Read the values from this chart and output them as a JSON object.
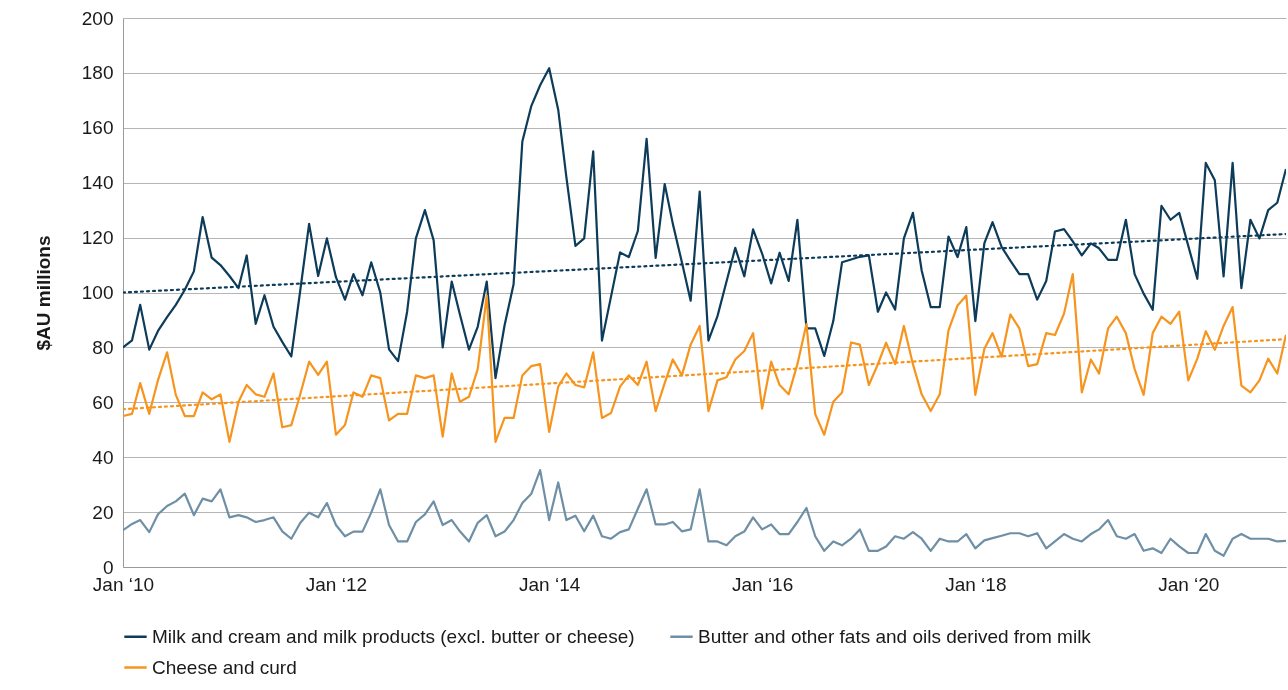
{
  "chart_data": {
    "type": "line",
    "ylabel": "$AU millions",
    "xlim": [
      "2010-01",
      "2020-12"
    ],
    "xticks": [
      {
        "value": "2010-01",
        "label": "Jan ‘10"
      },
      {
        "value": "2012-01",
        "label": "Jan ‘12"
      },
      {
        "value": "2014-01",
        "label": "Jan ‘14"
      },
      {
        "value": "2016-01",
        "label": "Jan ‘16"
      },
      {
        "value": "2018-01",
        "label": "Jan ‘18"
      },
      {
        "value": "2020-01",
        "label": "Jan ‘20"
      }
    ],
    "ylim": [
      0,
      200
    ],
    "yticks": [
      0,
      20,
      40,
      60,
      80,
      100,
      120,
      140,
      160,
      180,
      200
    ],
    "grid": "y",
    "legend": "bottom",
    "x": [
      "2010-01",
      "2010-02",
      "2010-03",
      "2010-04",
      "2010-05",
      "2010-06",
      "2010-07",
      "2010-08",
      "2010-09",
      "2010-10",
      "2010-11",
      "2010-12",
      "2011-01",
      "2011-02",
      "2011-03",
      "2011-04",
      "2011-05",
      "2011-06",
      "2011-07",
      "2011-08",
      "2011-09",
      "2011-10",
      "2011-11",
      "2011-12",
      "2012-01",
      "2012-02",
      "2012-03",
      "2012-04",
      "2012-05",
      "2012-06",
      "2012-07",
      "2012-08",
      "2012-09",
      "2012-10",
      "2012-11",
      "2012-12",
      "2013-01",
      "2013-02",
      "2013-03",
      "2013-04",
      "2013-05",
      "2013-06",
      "2013-07",
      "2013-08",
      "2013-09",
      "2013-10",
      "2013-11",
      "2013-12",
      "2014-01",
      "2014-02",
      "2014-03",
      "2014-04",
      "2014-05",
      "2014-06",
      "2014-07",
      "2014-08",
      "2014-09",
      "2014-10",
      "2014-11",
      "2014-12",
      "2015-01",
      "2015-02",
      "2015-03",
      "2015-04",
      "2015-05",
      "2015-06",
      "2015-07",
      "2015-08",
      "2015-09",
      "2015-10",
      "2015-11",
      "2015-12",
      "2016-01",
      "2016-02",
      "2016-03",
      "2016-04",
      "2016-05",
      "2016-06",
      "2016-07",
      "2016-08",
      "2016-09",
      "2016-10",
      "2016-11",
      "2016-12",
      "2017-01",
      "2017-02",
      "2017-03",
      "2017-04",
      "2017-05",
      "2017-06",
      "2017-07",
      "2017-08",
      "2017-09",
      "2017-10",
      "2017-11",
      "2017-12",
      "2018-01",
      "2018-02",
      "2018-03",
      "2018-04",
      "2018-05",
      "2018-06",
      "2018-07",
      "2018-08",
      "2018-09",
      "2018-10",
      "2018-11",
      "2018-12",
      "2019-01",
      "2019-02",
      "2019-03",
      "2019-04",
      "2019-05",
      "2019-06",
      "2019-07",
      "2019-08",
      "2019-09",
      "2019-10",
      "2019-11",
      "2019-12",
      "2020-01",
      "2020-02",
      "2020-03",
      "2020-04",
      "2020-05",
      "2020-06",
      "2020-07",
      "2020-08",
      "2020-09",
      "2020-10",
      "2020-11",
      "2020-12"
    ],
    "series": [
      {
        "name": "Milk and cream and milk products (excl. butter or cheese)",
        "color": "#0d3b5a",
        "values": [
          80,
          82.6,
          95.5,
          79.2,
          86,
          91,
          95.5,
          101,
          107.7,
          127.5,
          112.7,
          110,
          106,
          101.6,
          113.5,
          88.6,
          99,
          87.5,
          82,
          76.7,
          101,
          125,
          106,
          119.7,
          105.6,
          97.4,
          106.7,
          99,
          111,
          100,
          79.3,
          75,
          93,
          119.7,
          130,
          119,
          80,
          104,
          92,
          79.2,
          87.5,
          104,
          68.8,
          88,
          103,
          155,
          168,
          175.5,
          181.7,
          166.6,
          142,
          117,
          119.7,
          151.4,
          82.5,
          98.5,
          114.6,
          112.9,
          122.4,
          156,
          112.6,
          139.5,
          125,
          111,
          97,
          136.8,
          82.5,
          91.4,
          104,
          116.3,
          105.9,
          123,
          114.2,
          103.3,
          114.5,
          104.2,
          126.5,
          86.9,
          86.9,
          76.9,
          89.6,
          111,
          112,
          113,
          113.5,
          93,
          100,
          93.8,
          119.7,
          129,
          108,
          94.7,
          94.7,
          120.4,
          112.9,
          123.8,
          89.6,
          118,
          125.6,
          116.6,
          111.6,
          106.7,
          106.7,
          97.4,
          104.2,
          122.2,
          123.1,
          118.6,
          113.5,
          117.9,
          116.1,
          111.9,
          111.9,
          126.5,
          106.7,
          99.6,
          93.7,
          131.6,
          126.5,
          129,
          117,
          105,
          147.2,
          140.9,
          105.9,
          147.2,
          101.6,
          126.5,
          119.7,
          130,
          132.7,
          145
        ]
      },
      {
        "name": "Butter and other fats and oils derived from milk",
        "color": "#6e8fa5",
        "values": [
          13.4,
          15.7,
          17.1,
          12.7,
          19.2,
          22.2,
          23.9,
          26.7,
          18.9,
          24.9,
          23.9,
          28.3,
          18.1,
          18.9,
          18.1,
          16.4,
          17.1,
          18.1,
          13,
          10.3,
          16.1,
          19.8,
          18.1,
          23.3,
          15.3,
          11.2,
          12.9,
          12.9,
          19.8,
          28.3,
          15.3,
          9.3,
          9.3,
          16.4,
          19.2,
          23.9,
          15.3,
          17.1,
          13,
          9.3,
          16.1,
          18.9,
          11.2,
          12.9,
          17.1,
          23.3,
          26.7,
          35.3,
          17.1,
          30.8,
          17.1,
          18.7,
          13,
          18.7,
          11.2,
          10.3,
          12.7,
          13.7,
          21.2,
          28.3,
          15.5,
          15.5,
          16.4,
          13,
          13.7,
          28.3,
          9.3,
          9.3,
          7.9,
          11.2,
          12.9,
          18.1,
          13.7,
          15.5,
          12,
          12,
          16.4,
          21.5,
          11.2,
          5.9,
          9.3,
          7.9,
          10.3,
          13.7,
          5.9,
          5.9,
          7.5,
          11.2,
          10.3,
          12.7,
          10.3,
          5.9,
          10.3,
          9.3,
          9.3,
          12,
          6.8,
          9.7,
          10.5,
          11.4,
          12.3,
          12.3,
          11.2,
          12.3,
          6.8,
          9.3,
          12,
          10.3,
          9.3,
          12,
          13.7,
          17.1,
          11.2,
          10.3,
          12,
          5.9,
          6.8,
          5.1,
          10.3,
          7.5,
          5.1,
          5.1,
          12,
          5.9,
          4.1,
          10.3,
          12,
          10.3,
          10.3,
          10.3,
          9.3,
          9.5
        ]
      },
      {
        "name": "Cheese and curd",
        "color": "#f7941d",
        "values": [
          55,
          55.8,
          67,
          55.8,
          68.1,
          78.2,
          62.7,
          55,
          55,
          63.6,
          61.1,
          62.9,
          45.6,
          60.2,
          66.3,
          62.9,
          62,
          70.5,
          50.9,
          51.7,
          63,
          74.8,
          70,
          74.8,
          48.2,
          51.7,
          63.6,
          62,
          69.8,
          68.8,
          53.4,
          55.8,
          55.8,
          69.8,
          68.8,
          69.8,
          47.5,
          70.5,
          60.2,
          62,
          72.1,
          98.9,
          45.6,
          54.3,
          54.3,
          69.8,
          73.2,
          73.9,
          49.2,
          65.7,
          70.5,
          66.3,
          65.4,
          78.2,
          54.3,
          56.1,
          65.7,
          69.8,
          66.3,
          74.8,
          56.8,
          67,
          75.6,
          69.8,
          81,
          87.8,
          56.8,
          68,
          69.1,
          75.6,
          78.7,
          85.2,
          57.7,
          74.8,
          66.3,
          62.9,
          73.9,
          88.5,
          55.7,
          48.2,
          60.2,
          63.6,
          81.8,
          81,
          66.3,
          73.9,
          81.7,
          73.9,
          87.8,
          73.9,
          62.9,
          56.8,
          62.9,
          86.2,
          95.3,
          98.9,
          62.7,
          79.5,
          85.2,
          76.6,
          92,
          86.9,
          73.2,
          73.9,
          85.2,
          84.5,
          92.3,
          106.7,
          63.6,
          75.6,
          70.5,
          86.9,
          91.2,
          85.2,
          72.1,
          62.7,
          85.2,
          91.2,
          88.6,
          93,
          68,
          75.9,
          85.9,
          79.1,
          87.8,
          94.7,
          66.1,
          63.6,
          68,
          75.9,
          70.5,
          84.6
        ]
      },
      {
        "type": "line",
        "color": "#0d3b5a",
        "line_style": "dotted",
        "x": [
          "2010-01",
          "2020-12"
        ],
        "values": [
          100,
          121.3
        ]
      },
      {
        "type": "line",
        "color": "#f7941d",
        "line_style": "dotted",
        "x": [
          "2010-01",
          "2020-12"
        ],
        "values": [
          57.5,
          83
        ]
      }
    ]
  }
}
